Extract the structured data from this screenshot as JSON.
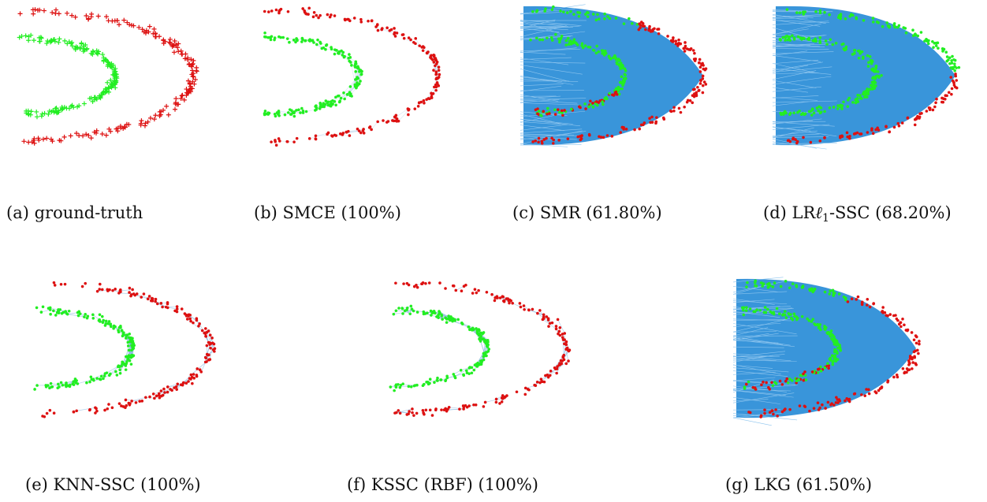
{
  "figure": {
    "colors": {
      "class_a": "#22ee22",
      "class_b": "#dd1111",
      "edges": "#2e8fd8"
    },
    "panels": [
      {
        "id": "a",
        "caption": "(a) ground-truth",
        "marker": "plus",
        "graph": "none",
        "misassigned": 0
      },
      {
        "id": "b",
        "caption": "(b) SMCE (100%)",
        "marker": "dot",
        "graph": "sparse",
        "misassigned": 0
      },
      {
        "id": "c",
        "caption": "(c) SMR (61.80%)",
        "marker": "dot",
        "graph": "dense",
        "misassigned": 0.35
      },
      {
        "id": "d",
        "caption_prefix": "(d) LR",
        "caption_script": "ℓ",
        "caption_sub": "1",
        "caption_suffix": "-SSC (68.20%)",
        "marker": "dot",
        "graph": "dense",
        "misassigned": 0.8
      },
      {
        "id": "e",
        "caption": "(e) KNN-SSC (100%)",
        "marker": "dot",
        "graph": "knn",
        "misassigned": 0
      },
      {
        "id": "f",
        "caption": "(f) KSSC (RBF) (100%)",
        "marker": "dot",
        "graph": "knn",
        "misassigned": 0
      },
      {
        "id": "g",
        "caption": "(g) LKG (61.50%)",
        "marker": "dot",
        "graph": "dense",
        "misassigned": 0.35
      }
    ]
  }
}
